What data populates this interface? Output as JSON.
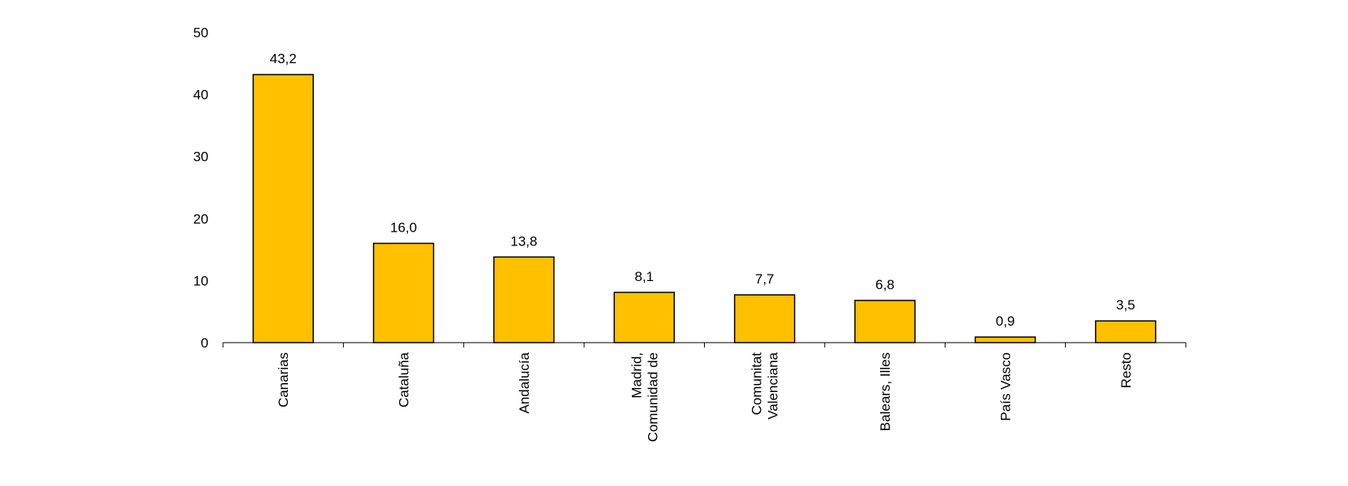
{
  "chart_data": {
    "type": "bar",
    "title": "",
    "xlabel": "",
    "ylabel": "",
    "ylim": [
      0,
      50
    ],
    "yticks": [
      "0",
      "10",
      "20",
      "30",
      "40",
      "50"
    ],
    "grid": false,
    "legend": "none",
    "categories": [
      [
        "Canarias"
      ],
      [
        "Cataluña"
      ],
      [
        "Andalucía"
      ],
      [
        "Madrid,",
        "Comunidad de"
      ],
      [
        "Comunitat",
        "Valenciana"
      ],
      [
        "Balears, Illes"
      ],
      [
        "País Vasco"
      ],
      [
        "Resto"
      ]
    ],
    "values": [
      43.2,
      16.0,
      13.8,
      8.1,
      7.7,
      6.8,
      0.9,
      3.5
    ],
    "value_labels": [
      "43,2",
      "16,0",
      "13,8",
      "8,1",
      "7,7",
      "6,8",
      "0,9",
      "3,5"
    ],
    "colors": {
      "bar_fill": "#FFC000",
      "bar_stroke": "#000000",
      "axis": "#000000"
    }
  }
}
